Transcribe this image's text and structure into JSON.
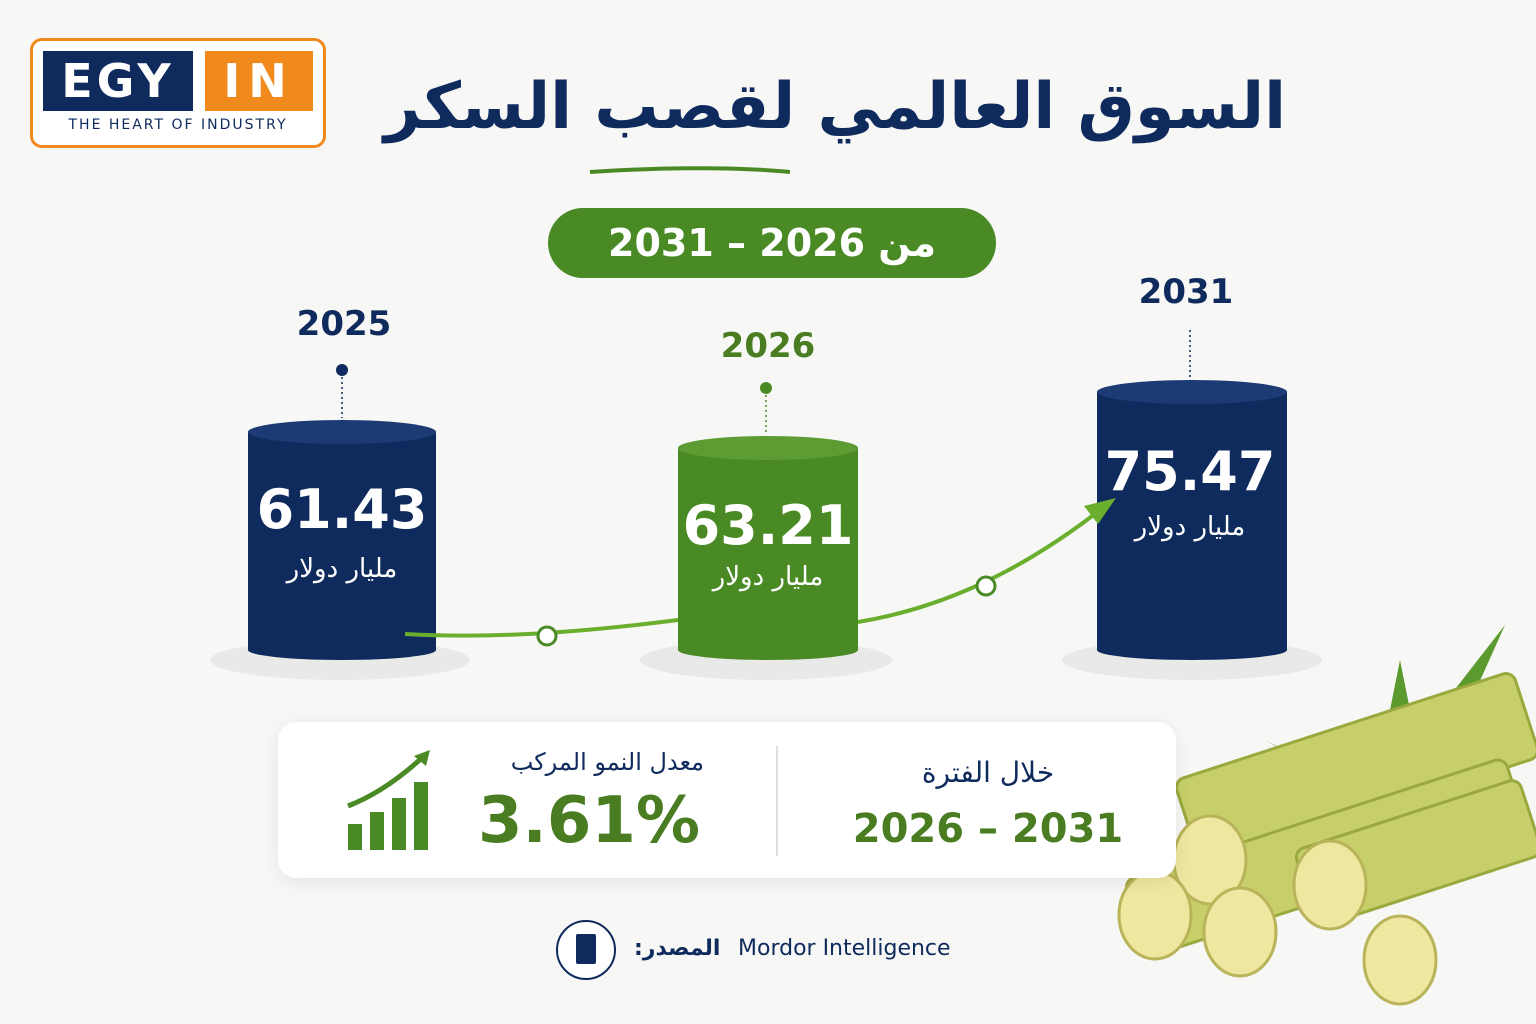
{
  "logo": {
    "left": "EGY",
    "right": "IN",
    "tagline": "THE HEART OF INDUSTRY"
  },
  "header": {
    "title": "السوق العالمي لقصب السكر",
    "period": "من 2026 – 2031"
  },
  "items": [
    {
      "year": 2025,
      "value": 61.43,
      "unit": "مليار دولار"
    },
    {
      "year": 2026,
      "value": 63.21,
      "unit": "مليار دولار"
    },
    {
      "year": 2031,
      "value": 75.47,
      "unit": "مليار دولار"
    }
  ],
  "summary": {
    "cagr_label": "معدل النمو المركب",
    "cagr": "3.61%",
    "period_label": "خلال الفترة",
    "period": "2026 – 2031"
  },
  "source": {
    "label": "المصدر:",
    "name": "Mordor Intelligence"
  }
}
